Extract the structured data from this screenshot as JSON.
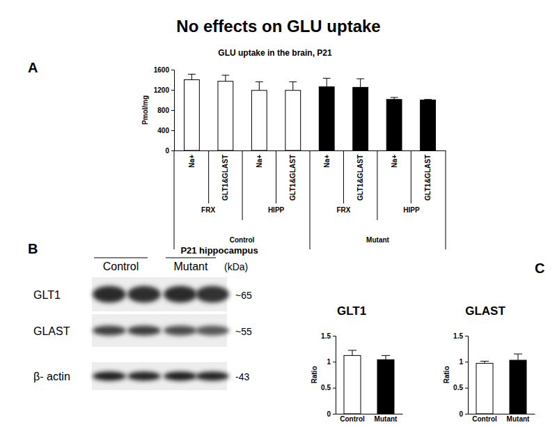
{
  "figure": {
    "title": "No effects on GLU uptake",
    "panel_labels": [
      "A",
      "B",
      "C"
    ]
  },
  "chart_data": [
    {
      "type": "bar",
      "title": "GLU uptake in the brain, P21",
      "y_label": "Pmol/mg",
      "categories": [
        "Na+",
        "GLT1&GLAST",
        "Na+",
        "GLT1&GLAST",
        "Na+",
        "GLT1&GLAST",
        "Na+",
        "GLT1&GLAST"
      ],
      "tissues": [
        "FRX",
        "HIPP",
        "FRX",
        "HIPP"
      ],
      "groups": [
        "Control",
        "Mutant"
      ],
      "values": [
        1400,
        1370,
        1190,
        1190,
        1260,
        1250,
        1010,
        1000
      ],
      "errors": [
        110,
        120,
        170,
        170,
        170,
        170,
        40,
        10
      ],
      "colors": [
        "#ffffff",
        "#ffffff",
        "#ffffff",
        "#ffffff",
        "#000000",
        "#000000",
        "#000000",
        "#000000"
      ],
      "ylim": [
        0,
        1600
      ],
      "yticks": [
        0,
        400,
        800,
        1200,
        1600
      ]
    },
    {
      "type": "bar",
      "title": "GLT1",
      "y_label": "Ratio",
      "categories": [
        "Control",
        "Mutant"
      ],
      "values": [
        1.12,
        1.04
      ],
      "errors": [
        0.1,
        0.08
      ],
      "colors": [
        "#ffffff",
        "#000000"
      ],
      "ylim": [
        0,
        1.5
      ],
      "yticks": [
        0,
        0.5,
        1,
        1.5
      ]
    },
    {
      "type": "bar",
      "title": "GLAST",
      "y_label": "Ratio",
      "categories": [
        "Control",
        "Mutant"
      ],
      "values": [
        0.97,
        1.03
      ],
      "errors": [
        0.04,
        0.12
      ],
      "colors": [
        "#ffffff",
        "#000000"
      ],
      "ylim": [
        0,
        1.5
      ],
      "yticks": [
        0,
        0.5,
        1,
        1.5
      ]
    }
  ],
  "blot": {
    "title": "P21 hippocampus",
    "lanes": [
      "Control",
      "Mutant"
    ],
    "unit": "(kDa)",
    "rows": [
      {
        "label": "GLT1",
        "size": "~65"
      },
      {
        "label": "GLAST",
        "size": "~55"
      },
      {
        "label": "β- actin",
        "size": "-43"
      }
    ]
  }
}
